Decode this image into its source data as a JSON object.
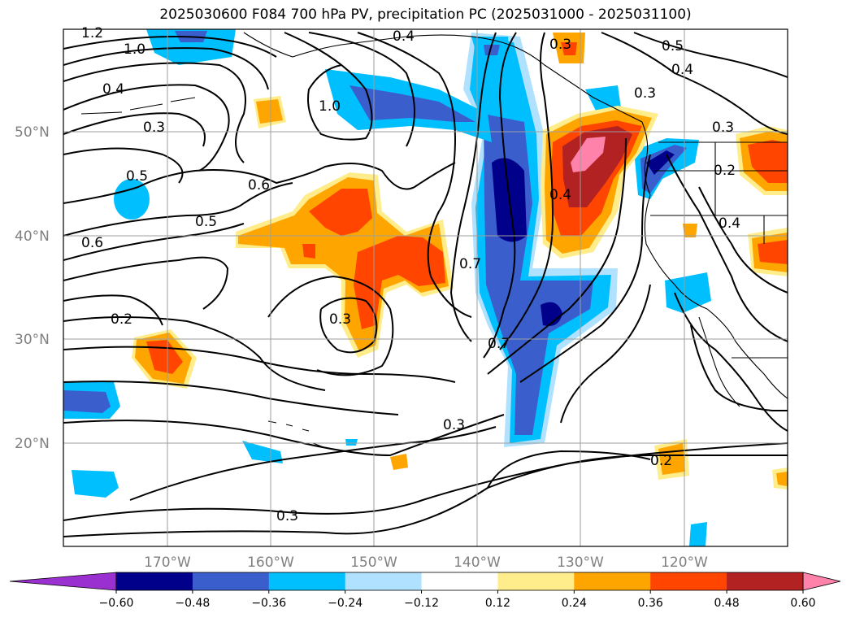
{
  "title": "2025030600 F084 700 hPa PV, precipitation PC (2025031000 - 2025031100)",
  "chart_data": {
    "type": "heatmap",
    "title": "2025030600 F084 700 hPa PV, precipitation PC (2025031000 - 2025031100)",
    "map_extent": {
      "lon": [
        -180,
        -110
      ],
      "lat": [
        10,
        60
      ]
    },
    "lat_ticks": [
      "20°N",
      "30°N",
      "40°N",
      "50°N"
    ],
    "lon_ticks": [
      "170°W",
      "160°W",
      "150°W",
      "140°W",
      "130°W",
      "120°W"
    ],
    "grid": true,
    "colorbar": {
      "orientation": "horizontal",
      "placement": "bottom",
      "extend": "both",
      "bounds": [
        "−0.60",
        "−0.48",
        "−0.36",
        "−0.24",
        "−0.12",
        "0.12",
        "0.24",
        "0.36",
        "0.48",
        "0.60"
      ],
      "colors": [
        "#9b30d0",
        "#00008b",
        "#3a5fcd",
        "#00bfff",
        "#b0e2ff",
        "#ffffff",
        "#ffec8b",
        "#ffa500",
        "#ff4500",
        "#b22222",
        "#ff82ab"
      ]
    },
    "contour_labels": [
      "1.2",
      "1.0",
      "0.4",
      "0.3",
      "0.5",
      "0.6",
      "0.5",
      "0.6",
      "0.2",
      "1.0",
      "0.4",
      "0.3",
      "0.5",
      "0.4",
      "0.3",
      "0.3",
      "0.2",
      "0.4",
      "0.7",
      "0.7",
      "0.3",
      "0.3",
      "0.3",
      "0.2",
      "0.4"
    ],
    "pc_regions": [
      {
        "lon": -137,
        "lat": 44,
        "value": -0.6
      },
      {
        "lon": -132.5,
        "lat": 32.5,
        "value": -0.55
      },
      {
        "lon": -128,
        "lat": 46,
        "value": 0.62
      },
      {
        "lon": -147,
        "lat": 38,
        "value": 0.45
      },
      {
        "lon": -151,
        "lat": 43,
        "value": 0.42
      },
      {
        "lon": -170,
        "lat": 29,
        "value": 0.42
      },
      {
        "lon": -178,
        "lat": 24,
        "value": -0.45
      },
      {
        "lon": -123.5,
        "lat": 46,
        "value": -0.45
      },
      {
        "lon": -112,
        "lat": 48,
        "value": 0.45
      },
      {
        "lon": -113,
        "lat": 38,
        "value": 0.4
      }
    ]
  }
}
